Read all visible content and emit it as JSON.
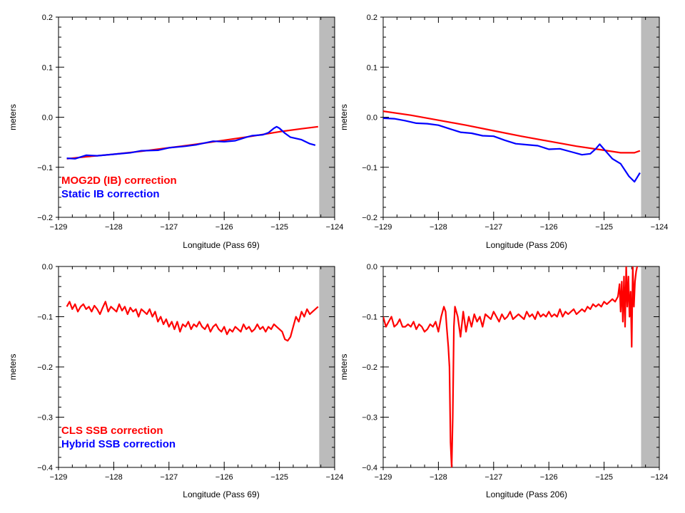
{
  "colors": {
    "red": "#ff0000",
    "blue": "#0000ff",
    "land": "#bbbbbb",
    "axis": "#000000"
  },
  "chart_data": [
    {
      "type": "line",
      "xlabel": "Longitude (Pass 69)",
      "ylabel": "meters",
      "xlim": [
        -129,
        -124
      ],
      "ylim": [
        -0.2,
        0.2
      ],
      "xticks": [
        -129,
        -128,
        -127,
        -126,
        -125,
        -124
      ],
      "yticks": [
        -0.2,
        -0.1,
        0.0,
        0.1,
        0.2
      ],
      "xtick_labels": [
        "−129",
        "−128",
        "−127",
        "−126",
        "−125",
        "−124"
      ],
      "ytick_labels": [
        "−0.2",
        "−0.1",
        "0.0",
        "0.1",
        "0.2"
      ],
      "land_mask_start": -124.28,
      "legend": [
        "MOG2D (IB) correction",
        "Static IB correction"
      ],
      "series": [
        {
          "name": "MOG2D (IB) correction",
          "color": "red",
          "x": [
            -128.85,
            -128.5,
            -128.0,
            -127.5,
            -127.0,
            -126.5,
            -126.0,
            -125.5,
            -125.0,
            -124.6,
            -124.3
          ],
          "y": [
            -0.083,
            -0.079,
            -0.074,
            -0.068,
            -0.061,
            -0.054,
            -0.046,
            -0.038,
            -0.029,
            -0.023,
            -0.019
          ]
        },
        {
          "name": "Static IB correction",
          "color": "blue",
          "x": [
            -128.85,
            -128.7,
            -128.5,
            -128.3,
            -128.0,
            -127.7,
            -127.5,
            -127.2,
            -127.0,
            -126.7,
            -126.5,
            -126.2,
            -126.0,
            -125.8,
            -125.6,
            -125.5,
            -125.3,
            -125.2,
            -125.1,
            -125.05,
            -125.0,
            -124.9,
            -124.8,
            -124.6,
            -124.45,
            -124.35
          ],
          "y": [
            -0.082,
            -0.083,
            -0.076,
            -0.077,
            -0.074,
            -0.071,
            -0.067,
            -0.066,
            -0.061,
            -0.058,
            -0.055,
            -0.048,
            -0.049,
            -0.047,
            -0.04,
            -0.037,
            -0.035,
            -0.031,
            -0.022,
            -0.019,
            -0.022,
            -0.032,
            -0.04,
            -0.045,
            -0.053,
            -0.056
          ]
        }
      ]
    },
    {
      "type": "line",
      "xlabel": "Longitude (Pass 206)",
      "ylabel": "meters",
      "xlim": [
        -129,
        -124
      ],
      "ylim": [
        -0.2,
        0.2
      ],
      "xticks": [
        -129,
        -128,
        -127,
        -126,
        -125,
        -124
      ],
      "yticks": [
        -0.2,
        -0.1,
        0.0,
        0.1,
        0.2
      ],
      "xtick_labels": [
        "−129",
        "−128",
        "−127",
        "−126",
        "−125",
        "−124"
      ],
      "ytick_labels": [
        "−0.2",
        "−0.1",
        "0.0",
        "0.1",
        "0.2"
      ],
      "land_mask_start": -124.33,
      "legend": [],
      "series": [
        {
          "name": "",
          "color": "red",
          "x": [
            -129.0,
            -128.5,
            -128.0,
            -127.5,
            -127.0,
            -126.5,
            -126.0,
            -125.5,
            -125.0,
            -124.7,
            -124.45,
            -124.35
          ],
          "y": [
            0.012,
            0.004,
            -0.006,
            -0.016,
            -0.027,
            -0.038,
            -0.048,
            -0.058,
            -0.066,
            -0.071,
            -0.071,
            -0.067
          ]
        },
        {
          "name": "",
          "color": "blue",
          "x": [
            -129.0,
            -128.8,
            -128.6,
            -128.4,
            -128.2,
            -128.0,
            -127.8,
            -127.6,
            -127.4,
            -127.2,
            -127.0,
            -126.8,
            -126.6,
            -126.4,
            -126.2,
            -126.0,
            -125.8,
            -125.6,
            -125.4,
            -125.25,
            -125.15,
            -125.08,
            -125.0,
            -124.85,
            -124.7,
            -124.55,
            -124.45,
            -124.35
          ],
          "y": [
            -0.002,
            -0.003,
            -0.007,
            -0.012,
            -0.013,
            -0.016,
            -0.023,
            -0.03,
            -0.032,
            -0.037,
            -0.038,
            -0.046,
            -0.053,
            -0.055,
            -0.057,
            -0.064,
            -0.063,
            -0.069,
            -0.075,
            -0.073,
            -0.063,
            -0.054,
            -0.064,
            -0.083,
            -0.093,
            -0.118,
            -0.129,
            -0.111
          ]
        }
      ]
    },
    {
      "type": "line",
      "xlabel": "Longitude (Pass 69)",
      "ylabel": "meters",
      "xlim": [
        -129,
        -124
      ],
      "ylim": [
        -0.4,
        0.0
      ],
      "xticks": [
        -129,
        -128,
        -127,
        -126,
        -125,
        -124
      ],
      "yticks": [
        -0.4,
        -0.3,
        -0.2,
        -0.1,
        0.0
      ],
      "xtick_labels": [
        "−129",
        "−128",
        "−127",
        "−126",
        "−125",
        "−124"
      ],
      "ytick_labels": [
        "−0.4",
        "−0.3",
        "−0.2",
        "−0.1",
        "0.0"
      ],
      "land_mask_start": -124.28,
      "legend": [
        "CLS SSB correction",
        "Hybrid SSB correction"
      ],
      "series": [
        {
          "name": "CLS SSB correction",
          "color": "red",
          "x": [
            -128.85,
            -128.8,
            -128.75,
            -128.7,
            -128.65,
            -128.6,
            -128.55,
            -128.5,
            -128.45,
            -128.4,
            -128.35,
            -128.3,
            -128.25,
            -128.2,
            -128.15,
            -128.1,
            -128.05,
            -128.0,
            -127.95,
            -127.9,
            -127.85,
            -127.8,
            -127.75,
            -127.7,
            -127.65,
            -127.6,
            -127.55,
            -127.5,
            -127.45,
            -127.4,
            -127.35,
            -127.3,
            -127.25,
            -127.2,
            -127.15,
            -127.1,
            -127.05,
            -127.0,
            -126.95,
            -126.9,
            -126.85,
            -126.8,
            -126.75,
            -126.7,
            -126.65,
            -126.6,
            -126.55,
            -126.5,
            -126.45,
            -126.4,
            -126.35,
            -126.3,
            -126.25,
            -126.2,
            -126.15,
            -126.1,
            -126.05,
            -126.0,
            -125.95,
            -125.9,
            -125.85,
            -125.8,
            -125.75,
            -125.7,
            -125.65,
            -125.6,
            -125.55,
            -125.5,
            -125.45,
            -125.4,
            -125.35,
            -125.3,
            -125.25,
            -125.2,
            -125.15,
            -125.1,
            -125.05,
            -125.0,
            -124.95,
            -124.9,
            -124.85,
            -124.8,
            -124.75,
            -124.7,
            -124.65,
            -124.6,
            -124.55,
            -124.5,
            -124.45,
            -124.4,
            -124.35,
            -124.3
          ],
          "y": [
            -0.08,
            -0.07,
            -0.085,
            -0.075,
            -0.09,
            -0.08,
            -0.075,
            -0.085,
            -0.08,
            -0.09,
            -0.078,
            -0.085,
            -0.095,
            -0.082,
            -0.07,
            -0.09,
            -0.08,
            -0.085,
            -0.09,
            -0.075,
            -0.088,
            -0.08,
            -0.095,
            -0.082,
            -0.09,
            -0.085,
            -0.1,
            -0.085,
            -0.09,
            -0.095,
            -0.085,
            -0.1,
            -0.09,
            -0.11,
            -0.1,
            -0.115,
            -0.105,
            -0.12,
            -0.11,
            -0.125,
            -0.11,
            -0.13,
            -0.115,
            -0.12,
            -0.11,
            -0.125,
            -0.115,
            -0.12,
            -0.11,
            -0.12,
            -0.125,
            -0.115,
            -0.13,
            -0.12,
            -0.115,
            -0.125,
            -0.13,
            -0.12,
            -0.135,
            -0.125,
            -0.13,
            -0.12,
            -0.125,
            -0.13,
            -0.115,
            -0.125,
            -0.12,
            -0.13,
            -0.125,
            -0.115,
            -0.125,
            -0.12,
            -0.13,
            -0.12,
            -0.125,
            -0.115,
            -0.12,
            -0.125,
            -0.13,
            -0.145,
            -0.148,
            -0.14,
            -0.12,
            -0.1,
            -0.11,
            -0.09,
            -0.1,
            -0.085,
            -0.095,
            -0.09,
            -0.085,
            -0.08
          ]
        }
      ]
    },
    {
      "type": "line",
      "xlabel": "Longitude (Pass 206)",
      "ylabel": "meters",
      "xlim": [
        -129,
        -124
      ],
      "ylim": [
        -0.4,
        0.0
      ],
      "xticks": [
        -129,
        -128,
        -127,
        -126,
        -125,
        -124
      ],
      "yticks": [
        -0.4,
        -0.3,
        -0.2,
        -0.1,
        0.0
      ],
      "xtick_labels": [
        "−129",
        "−128",
        "−127",
        "−126",
        "−125",
        "−124"
      ],
      "ytick_labels": [
        "−0.4",
        "−0.3",
        "−0.2",
        "−0.1",
        "0.0"
      ],
      "land_mask_start": -124.33,
      "legend": [],
      "series": [
        {
          "name": "",
          "color": "red",
          "x": [
            -129.0,
            -128.95,
            -128.9,
            -128.85,
            -128.8,
            -128.75,
            -128.7,
            -128.65,
            -128.6,
            -128.55,
            -128.5,
            -128.45,
            -128.4,
            -128.35,
            -128.3,
            -128.25,
            -128.2,
            -128.15,
            -128.1,
            -128.05,
            -128.0,
            -127.95,
            -127.9,
            -127.87,
            -127.85,
            -127.82,
            -127.8,
            -127.78,
            -127.76,
            -127.74,
            -127.72,
            -127.7,
            -127.65,
            -127.6,
            -127.55,
            -127.5,
            -127.45,
            -127.4,
            -127.35,
            -127.3,
            -127.25,
            -127.2,
            -127.15,
            -127.1,
            -127.05,
            -127.0,
            -126.95,
            -126.9,
            -126.85,
            -126.8,
            -126.75,
            -126.7,
            -126.65,
            -126.6,
            -126.55,
            -126.5,
            -126.45,
            -126.4,
            -126.35,
            -126.3,
            -126.25,
            -126.2,
            -126.15,
            -126.1,
            -126.05,
            -126.0,
            -125.95,
            -125.9,
            -125.85,
            -125.8,
            -125.75,
            -125.7,
            -125.65,
            -125.6,
            -125.55,
            -125.5,
            -125.45,
            -125.4,
            -125.35,
            -125.3,
            -125.25,
            -125.2,
            -125.15,
            -125.1,
            -125.05,
            -125.0,
            -124.95,
            -124.9,
            -124.85,
            -124.8,
            -124.75,
            -124.72,
            -124.7,
            -124.68,
            -124.66,
            -124.64,
            -124.62,
            -124.6,
            -124.58,
            -124.56,
            -124.54,
            -124.52,
            -124.5,
            -124.48,
            -124.46,
            -124.44,
            -124.42,
            -124.4
          ],
          "y": [
            -0.1,
            -0.12,
            -0.11,
            -0.1,
            -0.12,
            -0.115,
            -0.105,
            -0.12,
            -0.12,
            -0.115,
            -0.12,
            -0.11,
            -0.125,
            -0.115,
            -0.12,
            -0.13,
            -0.125,
            -0.115,
            -0.12,
            -0.11,
            -0.13,
            -0.1,
            -0.08,
            -0.09,
            -0.12,
            -0.16,
            -0.2,
            -0.35,
            -0.4,
            -0.3,
            -0.12,
            -0.08,
            -0.1,
            -0.14,
            -0.09,
            -0.13,
            -0.1,
            -0.12,
            -0.095,
            -0.11,
            -0.1,
            -0.12,
            -0.095,
            -0.1,
            -0.105,
            -0.09,
            -0.1,
            -0.11,
            -0.095,
            -0.105,
            -0.1,
            -0.09,
            -0.105,
            -0.1,
            -0.095,
            -0.1,
            -0.105,
            -0.09,
            -0.1,
            -0.095,
            -0.105,
            -0.09,
            -0.1,
            -0.095,
            -0.1,
            -0.09,
            -0.1,
            -0.095,
            -0.1,
            -0.085,
            -0.1,
            -0.09,
            -0.095,
            -0.09,
            -0.085,
            -0.095,
            -0.09,
            -0.085,
            -0.09,
            -0.08,
            -0.085,
            -0.075,
            -0.08,
            -0.075,
            -0.08,
            -0.07,
            -0.075,
            -0.07,
            -0.065,
            -0.07,
            -0.06,
            -0.035,
            -0.09,
            -0.03,
            -0.11,
            -0.02,
            -0.12,
            0.0,
            -0.08,
            -0.02,
            -0.1,
            -0.05,
            -0.16,
            0.0,
            -0.08,
            -0.03,
            -0.01,
            0.0
          ]
        }
      ]
    }
  ]
}
